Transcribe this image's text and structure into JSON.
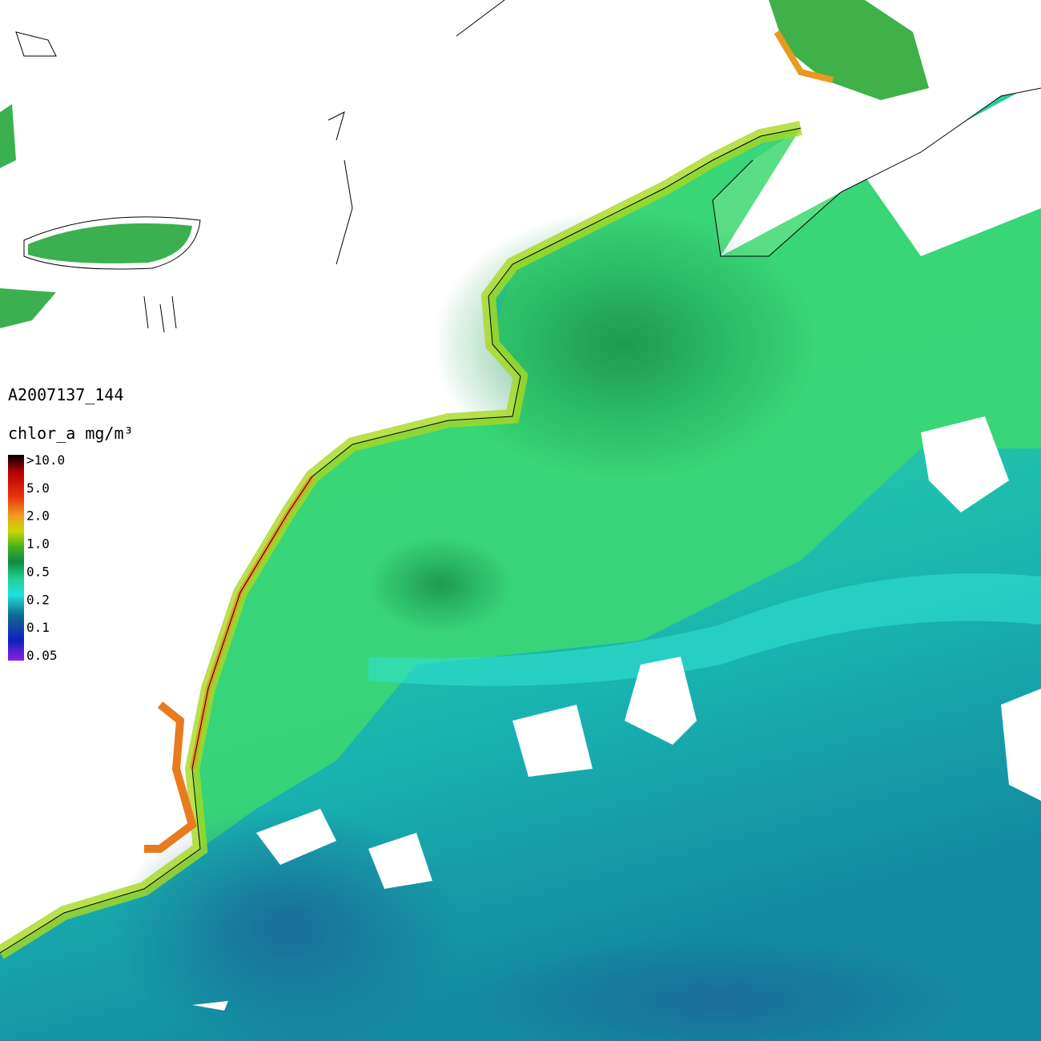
{
  "granule_id": "A2007137_144",
  "legend": {
    "title": "chlor_a mg/m³",
    "labels": [
      ">10.0",
      "5.0",
      "2.0",
      "1.0",
      "0.5",
      "0.2",
      "0.1",
      "0.05"
    ]
  }
}
